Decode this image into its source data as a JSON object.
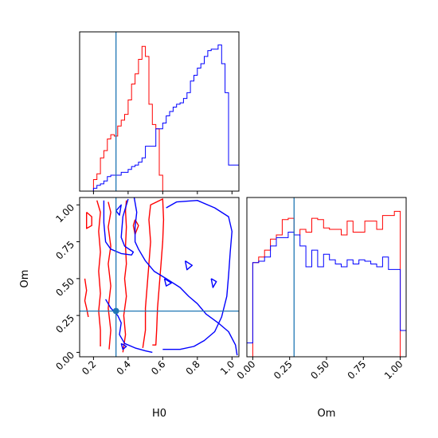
{
  "colors": {
    "series_a": "#ff0000",
    "series_b": "#0000ff",
    "truth": "#1f77b4",
    "frame": "#000000"
  },
  "chart_data": [
    {
      "type": "histogram",
      "panel": "H0 marginal",
      "xlim": [
        0.12,
        1.04
      ],
      "x_ticks": [
        "0.2",
        "0.4",
        "0.6",
        "0.8",
        "1.0"
      ],
      "x_tick_values": [
        0.2,
        0.4,
        0.6,
        0.8,
        1.0
      ],
      "truth": 0.33,
      "bin_edges": [
        0.12,
        0.14,
        0.16,
        0.18,
        0.2,
        0.22,
        0.24,
        0.26,
        0.28,
        0.3,
        0.32,
        0.34,
        0.36,
        0.38,
        0.4,
        0.42,
        0.44,
        0.46,
        0.48,
        0.5,
        0.52,
        0.54,
        0.56,
        0.58,
        0.6,
        0.62,
        0.64,
        0.66,
        0.68,
        0.7,
        0.72,
        0.74,
        0.76,
        0.78,
        0.8,
        0.82,
        0.84,
        0.86,
        0.88,
        0.9,
        0.92,
        0.94,
        0.96,
        0.98,
        1.0,
        1.02,
        1.04
      ],
      "ylim": [
        0,
        1.1
      ],
      "series": [
        {
          "color": "#ff0000",
          "values": [
            0,
            0,
            0,
            0,
            0.08,
            0.12,
            0.23,
            0.28,
            0.36,
            0.39,
            0.38,
            0.45,
            0.49,
            0.53,
            0.63,
            0.74,
            0.81,
            0.91,
            1.0,
            0.93,
            0.6,
            0.46,
            0.43,
            0.11,
            0,
            0,
            0,
            0,
            0,
            0,
            0,
            0,
            0,
            0,
            0,
            0,
            0,
            0,
            0,
            0,
            0,
            0,
            0,
            0,
            0,
            0
          ]
        },
        {
          "color": "#0000ff",
          "values": [
            0,
            0,
            0,
            0,
            0.02,
            0.04,
            0.05,
            0.07,
            0.1,
            0.11,
            0.11,
            0.11,
            0.13,
            0.13,
            0.15,
            0.17,
            0.18,
            0.2,
            0.23,
            0.31,
            0.31,
            0.31,
            0.43,
            0.43,
            0.47,
            0.52,
            0.55,
            0.58,
            0.6,
            0.61,
            0.64,
            0.68,
            0.76,
            0.8,
            0.85,
            0.88,
            0.93,
            0.97,
            0.98,
            0.98,
            1.01,
            0.88,
            0.68,
            0.18,
            0.18,
            0.18
          ]
        }
      ]
    },
    {
      "type": "contour",
      "panel": "H0 vs Om",
      "xlabel": "H0",
      "ylabel": "Om",
      "xlim": [
        0.12,
        1.04
      ],
      "ylim": [
        -0.03,
        1.05
      ],
      "x_ticks": [
        "0.2",
        "0.4",
        "0.6",
        "0.8",
        "1.0"
      ],
      "x_tick_values": [
        0.2,
        0.4,
        0.6,
        0.8,
        1.0
      ],
      "y_ticks": [
        "0.00",
        "0.25",
        "0.50",
        "0.75",
        "1.00"
      ],
      "y_tick_values": [
        0.0,
        0.25,
        0.5,
        0.75,
        1.0
      ],
      "truth": {
        "H0": 0.33,
        "Om": 0.28
      },
      "series": [
        {
          "color": "#ff0000",
          "contours": [
            [
              [
                0.22,
                1.03
              ],
              [
                0.24,
                0.95
              ],
              [
                0.23,
                0.82
              ],
              [
                0.24,
                0.68
              ],
              [
                0.23,
                0.55
              ],
              [
                0.24,
                0.4
              ],
              [
                0.23,
                0.28
              ],
              [
                0.24,
                0.15
              ],
              [
                0.24,
                0.04
              ]
            ],
            [
              [
                0.285,
                1.02
              ],
              [
                0.3,
                0.95
              ],
              [
                0.285,
                0.85
              ],
              [
                0.3,
                0.72
              ],
              [
                0.285,
                0.6
              ],
              [
                0.3,
                0.45
              ],
              [
                0.285,
                0.3
              ],
              [
                0.3,
                0.15
              ],
              [
                0.29,
                0.02
              ]
            ],
            [
              [
                0.37,
                0.0
              ],
              [
                0.385,
                0.12
              ],
              [
                0.375,
                0.25
              ],
              [
                0.39,
                0.38
              ],
              [
                0.38,
                0.5
              ],
              [
                0.39,
                0.6
              ],
              [
                0.385,
                0.72
              ],
              [
                0.39,
                0.85
              ],
              [
                0.385,
                0.96
              ],
              [
                0.39,
                1.03
              ]
            ],
            [
              [
                0.485,
                0.03
              ],
              [
                0.5,
                0.15
              ],
              [
                0.5,
                0.3
              ],
              [
                0.51,
                0.45
              ],
              [
                0.52,
                0.6
              ],
              [
                0.53,
                0.75
              ],
              [
                0.52,
                0.9
              ],
              [
                0.53,
                1.0
              ],
              [
                0.6,
                1.04
              ],
              [
                0.605,
                0.9
              ],
              [
                0.6,
                0.75
              ],
              [
                0.59,
                0.6
              ],
              [
                0.58,
                0.45
              ],
              [
                0.57,
                0.3
              ],
              [
                0.565,
                0.15
              ],
              [
                0.56,
                0.05
              ],
              [
                0.54,
                0.05
              ]
            ],
            [
              [
                0.16,
                0.95
              ],
              [
                0.19,
                0.92
              ],
              [
                0.19,
                0.86
              ],
              [
                0.16,
                0.84
              ],
              [
                0.16,
                0.95
              ]
            ],
            [
              [
                0.15,
                0.5
              ],
              [
                0.16,
                0.42
              ],
              [
                0.15,
                0.35
              ],
              [
                0.16,
                0.3
              ],
              [
                0.17,
                0.24
              ]
            ],
            [
              [
                0.44,
                0.9
              ],
              [
                0.46,
                0.86
              ],
              [
                0.44,
                0.8
              ],
              [
                0.43,
                0.86
              ],
              [
                0.44,
                0.9
              ]
            ]
          ]
        },
        {
          "color": "#0000ff",
          "contours": [
            [
              [
                0.26,
                1.03
              ],
              [
                0.26,
                0.88
              ],
              [
                0.27,
                0.75
              ],
              [
                0.3,
                0.7
              ],
              [
                0.36,
                0.67
              ],
              [
                0.42,
                0.66
              ],
              [
                0.43,
                0.68
              ],
              [
                0.38,
                0.72
              ],
              [
                0.36,
                0.78
              ],
              [
                0.37,
                0.92
              ],
              [
                0.4,
                1.04
              ]
            ],
            [
              [
                0.27,
                0.36
              ],
              [
                0.3,
                0.3
              ],
              [
                0.34,
                0.25
              ],
              [
                0.36,
                0.2
              ],
              [
                0.35,
                0.12
              ],
              [
                0.38,
                0.06
              ],
              [
                0.44,
                0.03
              ],
              [
                0.5,
                0.01
              ],
              [
                0.54,
                0.0
              ]
            ],
            [
              [
                0.435,
                1.05
              ],
              [
                0.45,
                0.95
              ],
              [
                0.44,
                0.85
              ],
              [
                0.44,
                0.75
              ],
              [
                0.46,
                0.7
              ],
              [
                0.5,
                0.62
              ],
              [
                0.55,
                0.55
              ],
              [
                0.62,
                0.5
              ],
              [
                0.7,
                0.44
              ],
              [
                0.75,
                0.38
              ],
              [
                0.8,
                0.33
              ],
              [
                0.85,
                0.26
              ],
              [
                0.92,
                0.2
              ],
              [
                0.98,
                0.14
              ],
              [
                1.02,
                0.05
              ],
              [
                1.03,
                -0.02
              ]
            ],
            [
              [
                0.62,
                0.98
              ],
              [
                0.68,
                1.02
              ],
              [
                0.8,
                1.03
              ],
              [
                0.9,
                0.98
              ],
              [
                0.98,
                0.92
              ],
              [
                1.0,
                0.82
              ],
              [
                0.99,
                0.68
              ],
              [
                0.98,
                0.52
              ],
              [
                0.97,
                0.38
              ],
              [
                0.94,
                0.24
              ],
              [
                0.9,
                0.14
              ],
              [
                0.84,
                0.08
              ],
              [
                0.78,
                0.04
              ],
              [
                0.7,
                0.02
              ],
              [
                0.6,
                0.02
              ]
            ],
            [
              [
                0.33,
                0.96
              ],
              [
                0.36,
                1.0
              ],
              [
                0.35,
                0.93
              ],
              [
                0.33,
                0.96
              ]
            ],
            [
              [
                0.73,
                0.62
              ],
              [
                0.77,
                0.59
              ],
              [
                0.74,
                0.56
              ],
              [
                0.73,
                0.62
              ]
            ],
            [
              [
                0.61,
                0.5
              ],
              [
                0.65,
                0.47
              ],
              [
                0.62,
                0.45
              ],
              [
                0.61,
                0.5
              ]
            ],
            [
              [
                0.88,
                0.5
              ],
              [
                0.91,
                0.48
              ],
              [
                0.89,
                0.44
              ],
              [
                0.88,
                0.5
              ]
            ],
            [
              [
                0.36,
                0.06
              ],
              [
                0.39,
                0.04
              ],
              [
                0.37,
                0.02
              ],
              [
                0.36,
                0.06
              ]
            ]
          ]
        }
      ]
    },
    {
      "type": "histogram",
      "panel": "Om marginal",
      "xlabel": "Om",
      "xlim": [
        -0.04,
        1.04
      ],
      "x_ticks": [
        "0.00",
        "0.25",
        "0.50",
        "0.75",
        "1.00"
      ],
      "x_tick_values": [
        0.0,
        0.25,
        0.5,
        0.75,
        1.0
      ],
      "truth": 0.28,
      "bin_edges": [
        -0.04,
        0.0,
        0.04,
        0.08,
        0.12,
        0.16,
        0.2,
        0.24,
        0.28,
        0.32,
        0.36,
        0.4,
        0.44,
        0.48,
        0.52,
        0.56,
        0.6,
        0.64,
        0.68,
        0.72,
        0.76,
        0.8,
        0.84,
        0.88,
        0.92,
        0.96,
        1.0,
        1.04
      ],
      "ylim": [
        0,
        1.15
      ],
      "series": [
        {
          "color": "#ff0000",
          "values": [
            0,
            0.68,
            0.72,
            0.77,
            0.85,
            0.88,
            0.99,
            1.0,
            0.88,
            0.92,
            0.9,
            1.0,
            0.99,
            0.93,
            0.92,
            0.92,
            0.88,
            0.98,
            0.9,
            0.9,
            0.98,
            0.98,
            0.92,
            1.02,
            1.02,
            1.05,
            0
          ]
        },
        {
          "color": "#0000ff",
          "values": [
            0.1,
            0.68,
            0.69,
            0.72,
            0.8,
            0.86,
            0.86,
            0.9,
            0.88,
            0.8,
            0.65,
            0.77,
            0.65,
            0.74,
            0.7,
            0.67,
            0.65,
            0.7,
            0.67,
            0.7,
            0.69,
            0.67,
            0.65,
            0.72,
            0.63,
            0.63,
            0.19
          ]
        }
      ]
    }
  ]
}
